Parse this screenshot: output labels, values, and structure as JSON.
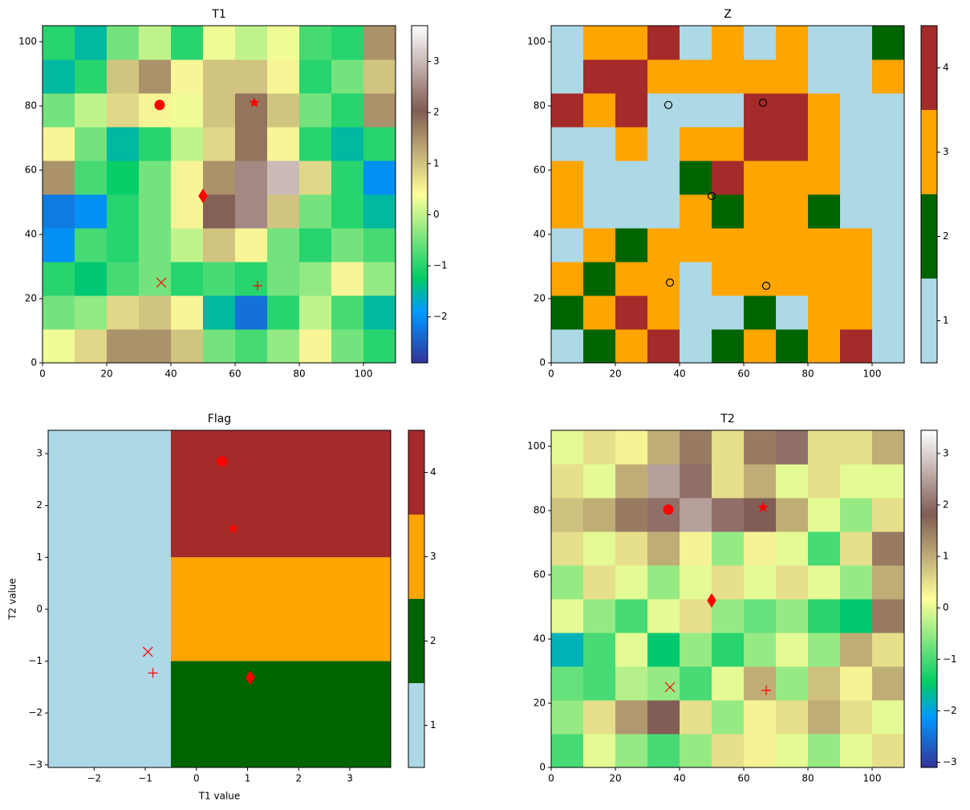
{
  "chart_data": [
    {
      "type": "heatmap",
      "title": "T1",
      "xlim": [
        0,
        110
      ],
      "ylim": [
        0,
        105
      ],
      "xticks": [
        0,
        20,
        40,
        60,
        80,
        100
      ],
      "yticks": [
        0,
        20,
        40,
        60,
        80,
        100
      ],
      "z": [
        [
          0.3,
          0.8,
          1.5,
          1.5,
          1.0,
          -0.5,
          -0.8,
          -0.3,
          0.5,
          -0.5,
          -1.0
        ],
        [
          -0.5,
          -0.3,
          0.8,
          1.0,
          0.5,
          -1.5,
          -2.3,
          -1.0,
          0.0,
          -0.8,
          -1.5
        ],
        [
          -1.0,
          -1.3,
          -0.8,
          -0.5,
          -1.0,
          -0.8,
          -1.0,
          -0.5,
          -0.3,
          0.5,
          -0.3
        ],
        [
          -2.0,
          -0.8,
          -1.0,
          -0.5,
          0.0,
          1.0,
          0.5,
          -0.5,
          -1.0,
          -0.5,
          -0.8
        ],
        [
          -2.2,
          -2.0,
          -1.0,
          -0.5,
          0.5,
          2.0,
          2.5,
          1.0,
          -0.5,
          -1.0,
          -1.5
        ],
        [
          1.5,
          -0.8,
          -1.2,
          -0.5,
          0.5,
          1.5,
          2.5,
          3.0,
          0.8,
          -1.0,
          -2.0
        ],
        [
          0.5,
          -0.5,
          -1.5,
          -1.0,
          0.0,
          0.8,
          1.8,
          0.5,
          -1.0,
          -1.5,
          -1.0
        ],
        [
          -0.5,
          0.0,
          0.8,
          0.5,
          0.3,
          1.0,
          1.8,
          1.0,
          -0.5,
          -1.0,
          1.5
        ],
        [
          -1.5,
          -1.0,
          1.0,
          1.5,
          0.5,
          1.0,
          1.0,
          0.5,
          -1.0,
          -0.5,
          1.0
        ],
        [
          -1.0,
          -1.5,
          -0.5,
          0.0,
          -1.0,
          0.3,
          0.0,
          0.3,
          -0.8,
          -1.0,
          1.5
        ]
      ],
      "colorbar": {
        "colormap": "terrain",
        "lim": [
          -2.9,
          3.7
        ],
        "ticks": [
          {
            "value": -2,
            "label": "−2"
          },
          {
            "value": -1,
            "label": "−1"
          },
          0,
          1,
          2,
          3
        ]
      },
      "points": [
        {
          "marker": "circle",
          "color": "red",
          "x": 36.5,
          "y": 80.3
        },
        {
          "marker": "star",
          "color": "red",
          "x": 66,
          "y": 81
        },
        {
          "marker": "diamond",
          "color": "red",
          "x": 50,
          "y": 52
        },
        {
          "marker": "x",
          "color": "red",
          "x": 37,
          "y": 25
        },
        {
          "marker": "plus",
          "color": "red",
          "x": 67,
          "y": 24
        }
      ]
    },
    {
      "type": "heatmap",
      "title": "Z",
      "xlim": [
        0,
        110
      ],
      "ylim": [
        0,
        105
      ],
      "xticks": [
        0,
        20,
        40,
        60,
        80,
        100
      ],
      "yticks": [
        0,
        20,
        40,
        60,
        80,
        100
      ],
      "z": [
        [
          1,
          2,
          3,
          4,
          1,
          2,
          3,
          2,
          3,
          4,
          1
        ],
        [
          2,
          3,
          4,
          3,
          1,
          1,
          2,
          1,
          3,
          3,
          1
        ],
        [
          3,
          2,
          3,
          3,
          1,
          3,
          3,
          3,
          3,
          3,
          1
        ],
        [
          1,
          3,
          2,
          3,
          3,
          3,
          3,
          3,
          3,
          3,
          1
        ],
        [
          3,
          1,
          1,
          1,
          3,
          2,
          3,
          3,
          2,
          1,
          1
        ],
        [
          3,
          1,
          1,
          1,
          2,
          4,
          3,
          3,
          3,
          1,
          1
        ],
        [
          1,
          1,
          3,
          1,
          3,
          3,
          4,
          4,
          3,
          1,
          1
        ],
        [
          4,
          3,
          4,
          1,
          1,
          1,
          4,
          4,
          3,
          1,
          1
        ],
        [
          1,
          4,
          4,
          3,
          3,
          3,
          3,
          3,
          1,
          1,
          3
        ],
        [
          1,
          3,
          3,
          4,
          1,
          3,
          1,
          3,
          1,
          1,
          2
        ]
      ],
      "colorbar": {
        "colors": [
          "#add8e6",
          "#006400",
          "#ffa500",
          "#a52a2a"
        ],
        "lim": [
          0.5,
          4.5
        ],
        "ticks": [
          1,
          2,
          3,
          4
        ]
      },
      "points": [
        {
          "marker": "open-circle",
          "color": "black",
          "x": 36.5,
          "y": 80.3
        },
        {
          "marker": "open-circle",
          "color": "black",
          "x": 66,
          "y": 81
        },
        {
          "marker": "open-circle",
          "color": "black",
          "x": 50,
          "y": 52
        },
        {
          "marker": "open-circle",
          "color": "black",
          "x": 37,
          "y": 25
        },
        {
          "marker": "open-circle",
          "color": "black",
          "x": 67,
          "y": 24
        }
      ]
    },
    {
      "type": "regions",
      "title": "Flag",
      "xlabel": "T1 value",
      "ylabel": "T2 value",
      "xlim": [
        -2.9,
        3.8
      ],
      "ylim": [
        -3.05,
        3.45
      ],
      "xticks": [
        {
          "value": -2,
          "label": "−2"
        },
        {
          "value": -1,
          "label": "−1"
        },
        0,
        1,
        2,
        3
      ],
      "yticks": [
        {
          "value": -3,
          "label": "−3"
        },
        {
          "value": -2,
          "label": "−2"
        },
        {
          "value": -1,
          "label": "−1"
        },
        0,
        1,
        2,
        3
      ],
      "regions": [
        {
          "x": [
            -2.9,
            -0.5
          ],
          "y": [
            -3.05,
            3.45
          ],
          "value": 1
        },
        {
          "x": [
            -0.5,
            3.8
          ],
          "y": [
            1,
            3.45
          ],
          "value": 4
        },
        {
          "x": [
            -0.5,
            3.8
          ],
          "y": [
            -1,
            1
          ],
          "value": 3
        },
        {
          "x": [
            -0.5,
            3.8
          ],
          "y": [
            -3.05,
            -1
          ],
          "value": 2
        }
      ],
      "colorbar": {
        "colors": [
          "#add8e6",
          "#006400",
          "#ffa500",
          "#a52a2a"
        ],
        "lim": [
          0.5,
          4.5
        ],
        "ticks": [
          1,
          2,
          3,
          4
        ]
      },
      "points": [
        {
          "marker": "circle",
          "color": "red",
          "x": 0.5,
          "y": 2.85
        },
        {
          "marker": "star",
          "color": "red",
          "x": 0.72,
          "y": 1.55
        },
        {
          "marker": "diamond",
          "color": "red",
          "x": 1.05,
          "y": -1.32
        },
        {
          "marker": "x",
          "color": "red",
          "x": -0.95,
          "y": -0.82
        },
        {
          "marker": "plus",
          "color": "red",
          "x": -0.85,
          "y": -1.23
        }
      ]
    },
    {
      "type": "heatmap",
      "title": "T2",
      "xlim": [
        0,
        110
      ],
      "ylim": [
        0,
        105
      ],
      "xticks": [
        0,
        20,
        40,
        60,
        80,
        100
      ],
      "yticks": [
        0,
        20,
        40,
        60,
        80,
        100
      ],
      "z": [
        [
          -1.0,
          0.0,
          -0.5,
          -1.0,
          -0.5,
          0.5,
          0.3,
          0.0,
          -0.5,
          0.0,
          0.5
        ],
        [
          -0.5,
          0.5,
          1.2,
          1.8,
          0.5,
          -0.5,
          0.3,
          0.5,
          1.0,
          0.5,
          0.0
        ],
        [
          -0.8,
          -1.0,
          -0.3,
          -0.5,
          -1.0,
          0.0,
          1.0,
          -0.5,
          0.8,
          0.3,
          1.0
        ],
        [
          -1.8,
          -1.0,
          0.0,
          -1.5,
          -0.5,
          -1.2,
          -0.5,
          0.0,
          -0.5,
          1.0,
          0.5
        ],
        [
          0.0,
          -0.5,
          -1.0,
          0.0,
          0.5,
          -0.5,
          -0.8,
          -0.5,
          -1.2,
          -1.5,
          1.5
        ],
        [
          -0.5,
          0.5,
          0.0,
          -0.5,
          0.0,
          0.5,
          0.0,
          0.5,
          0.0,
          -0.5,
          1.0
        ],
        [
          0.5,
          0.0,
          0.5,
          1.0,
          0.3,
          -0.5,
          0.3,
          0.0,
          -1.0,
          0.5,
          1.5
        ],
        [
          0.8,
          1.0,
          1.5,
          2.0,
          2.5,
          2.0,
          1.8,
          1.0,
          0.0,
          -0.5,
          0.5
        ],
        [
          0.5,
          0.0,
          1.0,
          2.5,
          2.0,
          0.5,
          1.0,
          0.0,
          0.5,
          0.0,
          0.0
        ],
        [
          0.0,
          0.5,
          0.3,
          1.0,
          1.5,
          0.5,
          1.5,
          2.0,
          0.5,
          0.5,
          1.0
        ]
      ],
      "colorbar": {
        "colormap": "terrain",
        "lim": [
          -3.1,
          3.45
        ],
        "ticks": [
          {
            "value": -3,
            "label": "−3"
          },
          {
            "value": -2,
            "label": "−2"
          },
          {
            "value": -1,
            "label": "−1"
          },
          0,
          1,
          2,
          3
        ]
      },
      "points": [
        {
          "marker": "circle",
          "color": "red",
          "x": 36.5,
          "y": 80.3
        },
        {
          "marker": "star",
          "color": "red",
          "x": 66,
          "y": 81
        },
        {
          "marker": "diamond",
          "color": "red",
          "x": 50,
          "y": 52
        },
        {
          "marker": "x",
          "color": "red",
          "x": 37,
          "y": 25
        },
        {
          "marker": "plus",
          "color": "red",
          "x": 67,
          "y": 24
        }
      ]
    }
  ]
}
